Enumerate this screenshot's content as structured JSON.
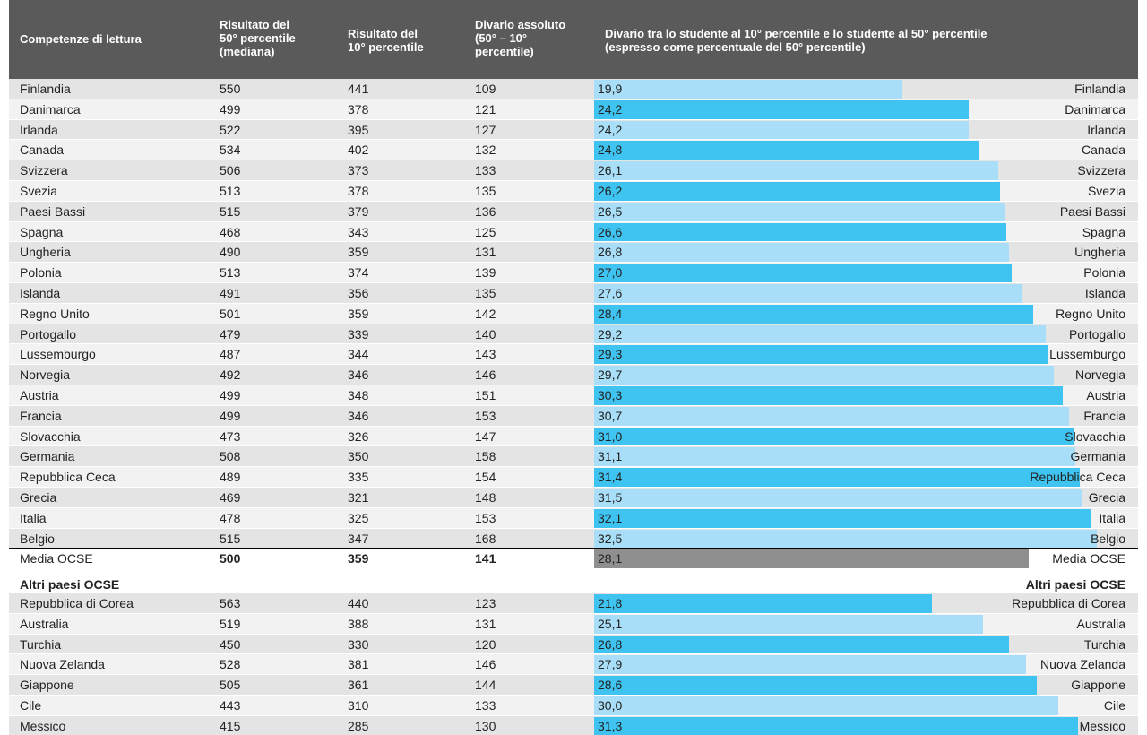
{
  "table": {
    "header": {
      "country": "Competenze di lettura",
      "median": [
        "Risultato del",
        "50° percentile",
        "(mediana)"
      ],
      "p10": [
        "Risultato del",
        "10° percentile"
      ],
      "gap": [
        "Divario assoluto",
        "(50° – 10°",
        "percentile)"
      ],
      "chart": [
        "Divario tra lo studente al 10° percentile e lo studente al 50° percentile",
        "(espresso come percentuale del 50° percentile)"
      ]
    },
    "rows": [
      {
        "country": "Finlandia",
        "median": 550,
        "p10": 441,
        "gap": 109,
        "pct": 19.9,
        "pct_label": "19,9"
      },
      {
        "country": "Danimarca",
        "median": 499,
        "p10": 378,
        "gap": 121,
        "pct": 24.2,
        "pct_label": "24,2"
      },
      {
        "country": "Irlanda",
        "median": 522,
        "p10": 395,
        "gap": 127,
        "pct": 24.2,
        "pct_label": "24,2"
      },
      {
        "country": "Canada",
        "median": 534,
        "p10": 402,
        "gap": 132,
        "pct": 24.8,
        "pct_label": "24,8"
      },
      {
        "country": "Svizzera",
        "median": 506,
        "p10": 373,
        "gap": 133,
        "pct": 26.1,
        "pct_label": "26,1"
      },
      {
        "country": "Svezia",
        "median": 513,
        "p10": 378,
        "gap": 135,
        "pct": 26.2,
        "pct_label": "26,2"
      },
      {
        "country": "Paesi Bassi",
        "median": 515,
        "p10": 379,
        "gap": 136,
        "pct": 26.5,
        "pct_label": "26,5"
      },
      {
        "country": "Spagna",
        "median": 468,
        "p10": 343,
        "gap": 125,
        "pct": 26.6,
        "pct_label": "26,6"
      },
      {
        "country": "Ungheria",
        "median": 490,
        "p10": 359,
        "gap": 131,
        "pct": 26.8,
        "pct_label": "26,8"
      },
      {
        "country": "Polonia",
        "median": 513,
        "p10": 374,
        "gap": 139,
        "pct": 27.0,
        "pct_label": "27,0"
      },
      {
        "country": "Islanda",
        "median": 491,
        "p10": 356,
        "gap": 135,
        "pct": 27.6,
        "pct_label": "27,6"
      },
      {
        "country": "Regno Unito",
        "median": 501,
        "p10": 359,
        "gap": 142,
        "pct": 28.4,
        "pct_label": "28,4"
      },
      {
        "country": "Portogallo",
        "median": 479,
        "p10": 339,
        "gap": 140,
        "pct": 29.2,
        "pct_label": "29,2"
      },
      {
        "country": "Lussemburgo",
        "median": 487,
        "p10": 344,
        "gap": 143,
        "pct": 29.3,
        "pct_label": "29,3"
      },
      {
        "country": "Norvegia",
        "median": 492,
        "p10": 346,
        "gap": 146,
        "pct": 29.7,
        "pct_label": "29,7"
      },
      {
        "country": "Austria",
        "median": 499,
        "p10": 348,
        "gap": 151,
        "pct": 30.3,
        "pct_label": "30,3"
      },
      {
        "country": "Francia",
        "median": 499,
        "p10": 346,
        "gap": 153,
        "pct": 30.7,
        "pct_label": "30,7"
      },
      {
        "country": "Slovacchia",
        "median": 473,
        "p10": 326,
        "gap": 147,
        "pct": 31.0,
        "pct_label": "31,0"
      },
      {
        "country": "Germania",
        "median": 508,
        "p10": 350,
        "gap": 158,
        "pct": 31.1,
        "pct_label": "31,1"
      },
      {
        "country": "Repubblica Ceca",
        "median": 489,
        "p10": 335,
        "gap": 154,
        "pct": 31.4,
        "pct_label": "31,4"
      },
      {
        "country": "Grecia",
        "median": 469,
        "p10": 321,
        "gap": 148,
        "pct": 31.5,
        "pct_label": "31,5"
      },
      {
        "country": "Italia",
        "median": 478,
        "p10": 325,
        "gap": 153,
        "pct": 32.1,
        "pct_label": "32,1"
      },
      {
        "country": "Belgio",
        "median": 515,
        "p10": 347,
        "gap": 168,
        "pct": 32.5,
        "pct_label": "32,5"
      }
    ],
    "average": {
      "country": "Media OCSE",
      "median": 500,
      "p10": 359,
      "gap": 141,
      "pct": 28.1,
      "pct_label": "28,1"
    },
    "other_title": "Altri paesi OCSE",
    "other_rows": [
      {
        "country": "Repubblica di Corea",
        "median": 563,
        "p10": 440,
        "gap": 123,
        "pct": 21.8,
        "pct_label": "21,8"
      },
      {
        "country": "Australia",
        "median": 519,
        "p10": 388,
        "gap": 131,
        "pct": 25.1,
        "pct_label": "25,1"
      },
      {
        "country": "Turchia",
        "median": 450,
        "p10": 330,
        "gap": 120,
        "pct": 26.8,
        "pct_label": "26,8"
      },
      {
        "country": "Nuova Zelanda",
        "median": 528,
        "p10": 381,
        "gap": 146,
        "pct": 27.9,
        "pct_label": "27,9"
      },
      {
        "country": "Giappone",
        "median": 505,
        "p10": 361,
        "gap": 144,
        "pct": 28.6,
        "pct_label": "28,6"
      },
      {
        "country": "Cile",
        "median": 443,
        "p10": 310,
        "gap": 133,
        "pct": 30.0,
        "pct_label": "30,0"
      },
      {
        "country": "Messico",
        "median": 415,
        "p10": 285,
        "gap": 130,
        "pct": 31.3,
        "pct_label": "31,3"
      }
    ]
  }
}
